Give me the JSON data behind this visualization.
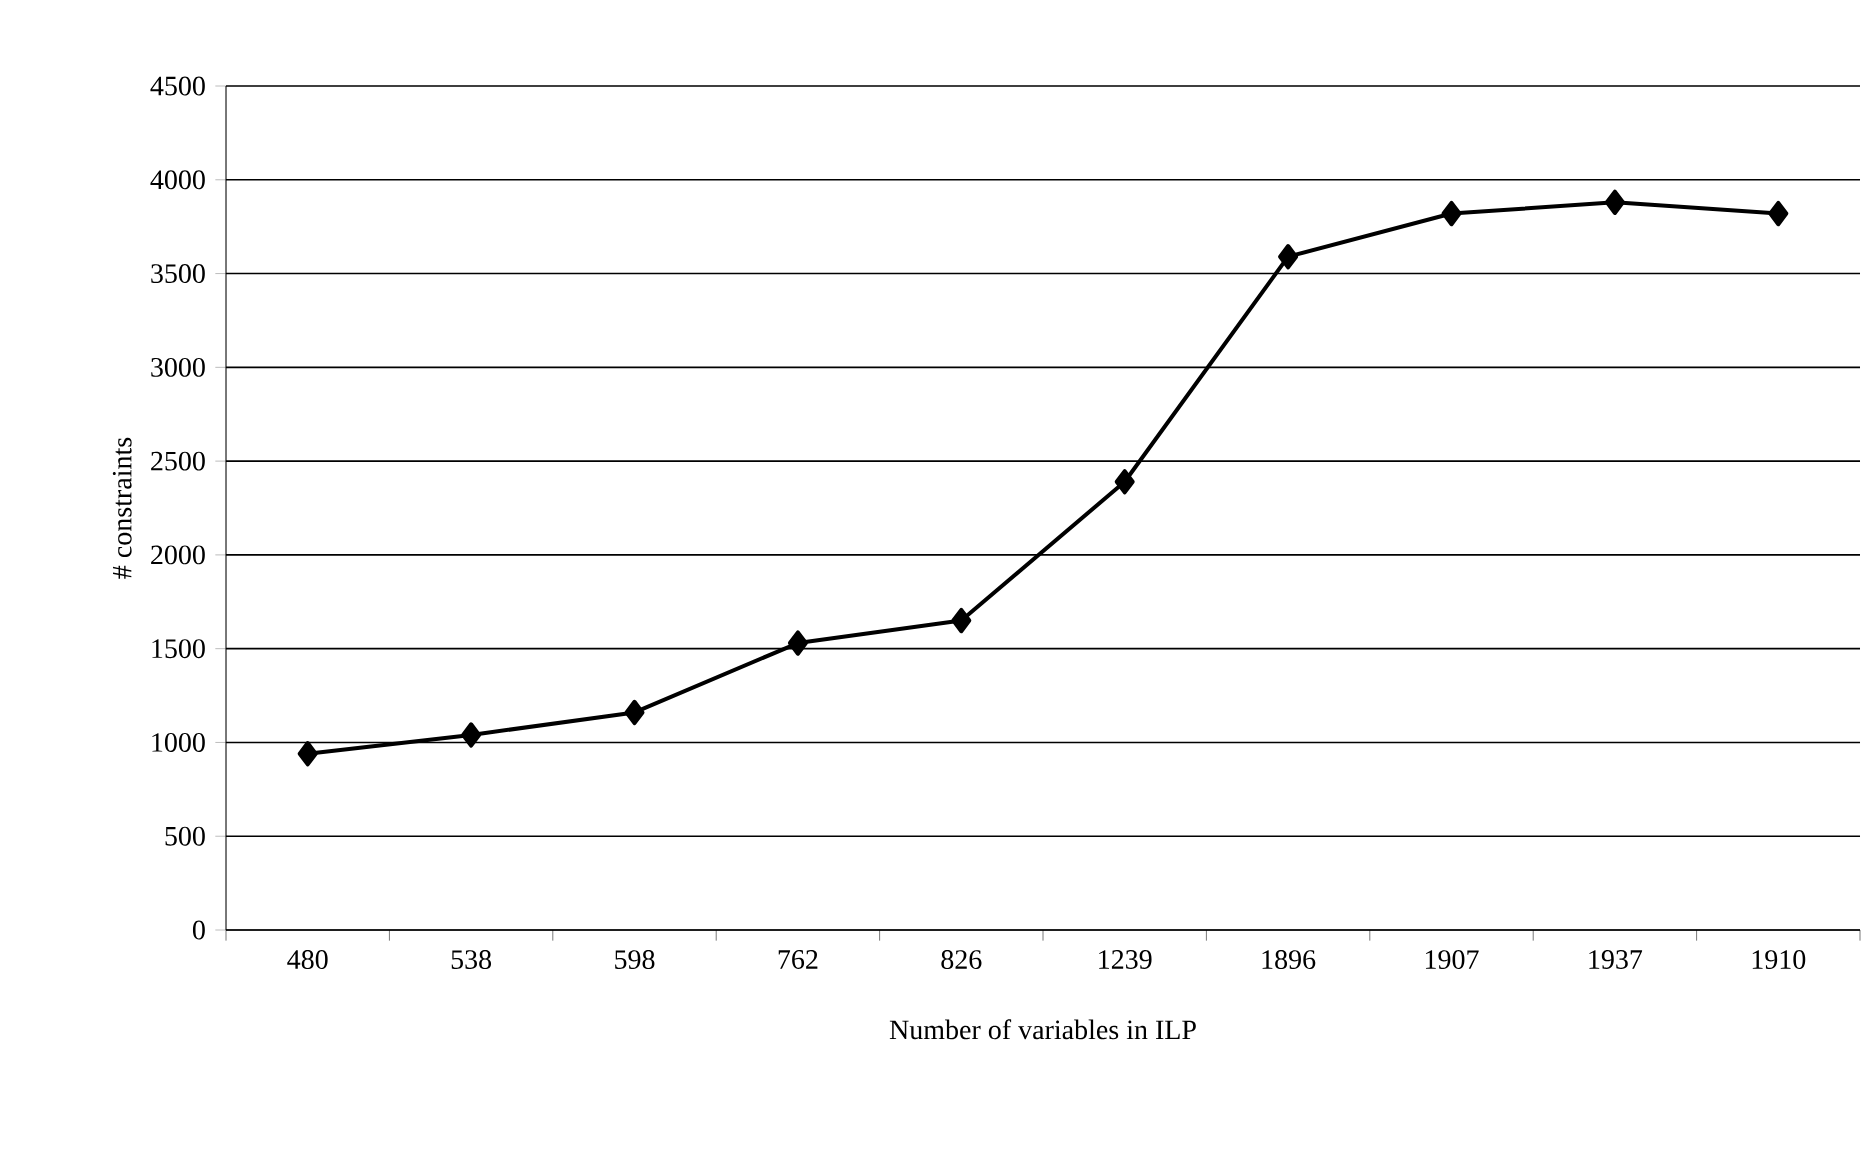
{
  "chart_data": {
    "type": "line",
    "xlabel": "Number of variables in ILP",
    "ylabel": "# constraints",
    "categories": [
      "480",
      "538",
      "598",
      "762",
      "826",
      "1239",
      "1896",
      "1907",
      "1937",
      "1910"
    ],
    "series": [
      {
        "color": "#000000",
        "values": [
          940,
          1040,
          1160,
          1530,
          1650,
          2390,
          3590,
          3820,
          3880,
          3820
        ]
      }
    ],
    "ylim": [
      0,
      4500
    ],
    "yticks": [
      0,
      500,
      1000,
      1500,
      2000,
      2500,
      3000,
      3500,
      4000,
      4500
    ],
    "grid": "y",
    "marker": "diamond",
    "line_style": "solid"
  }
}
